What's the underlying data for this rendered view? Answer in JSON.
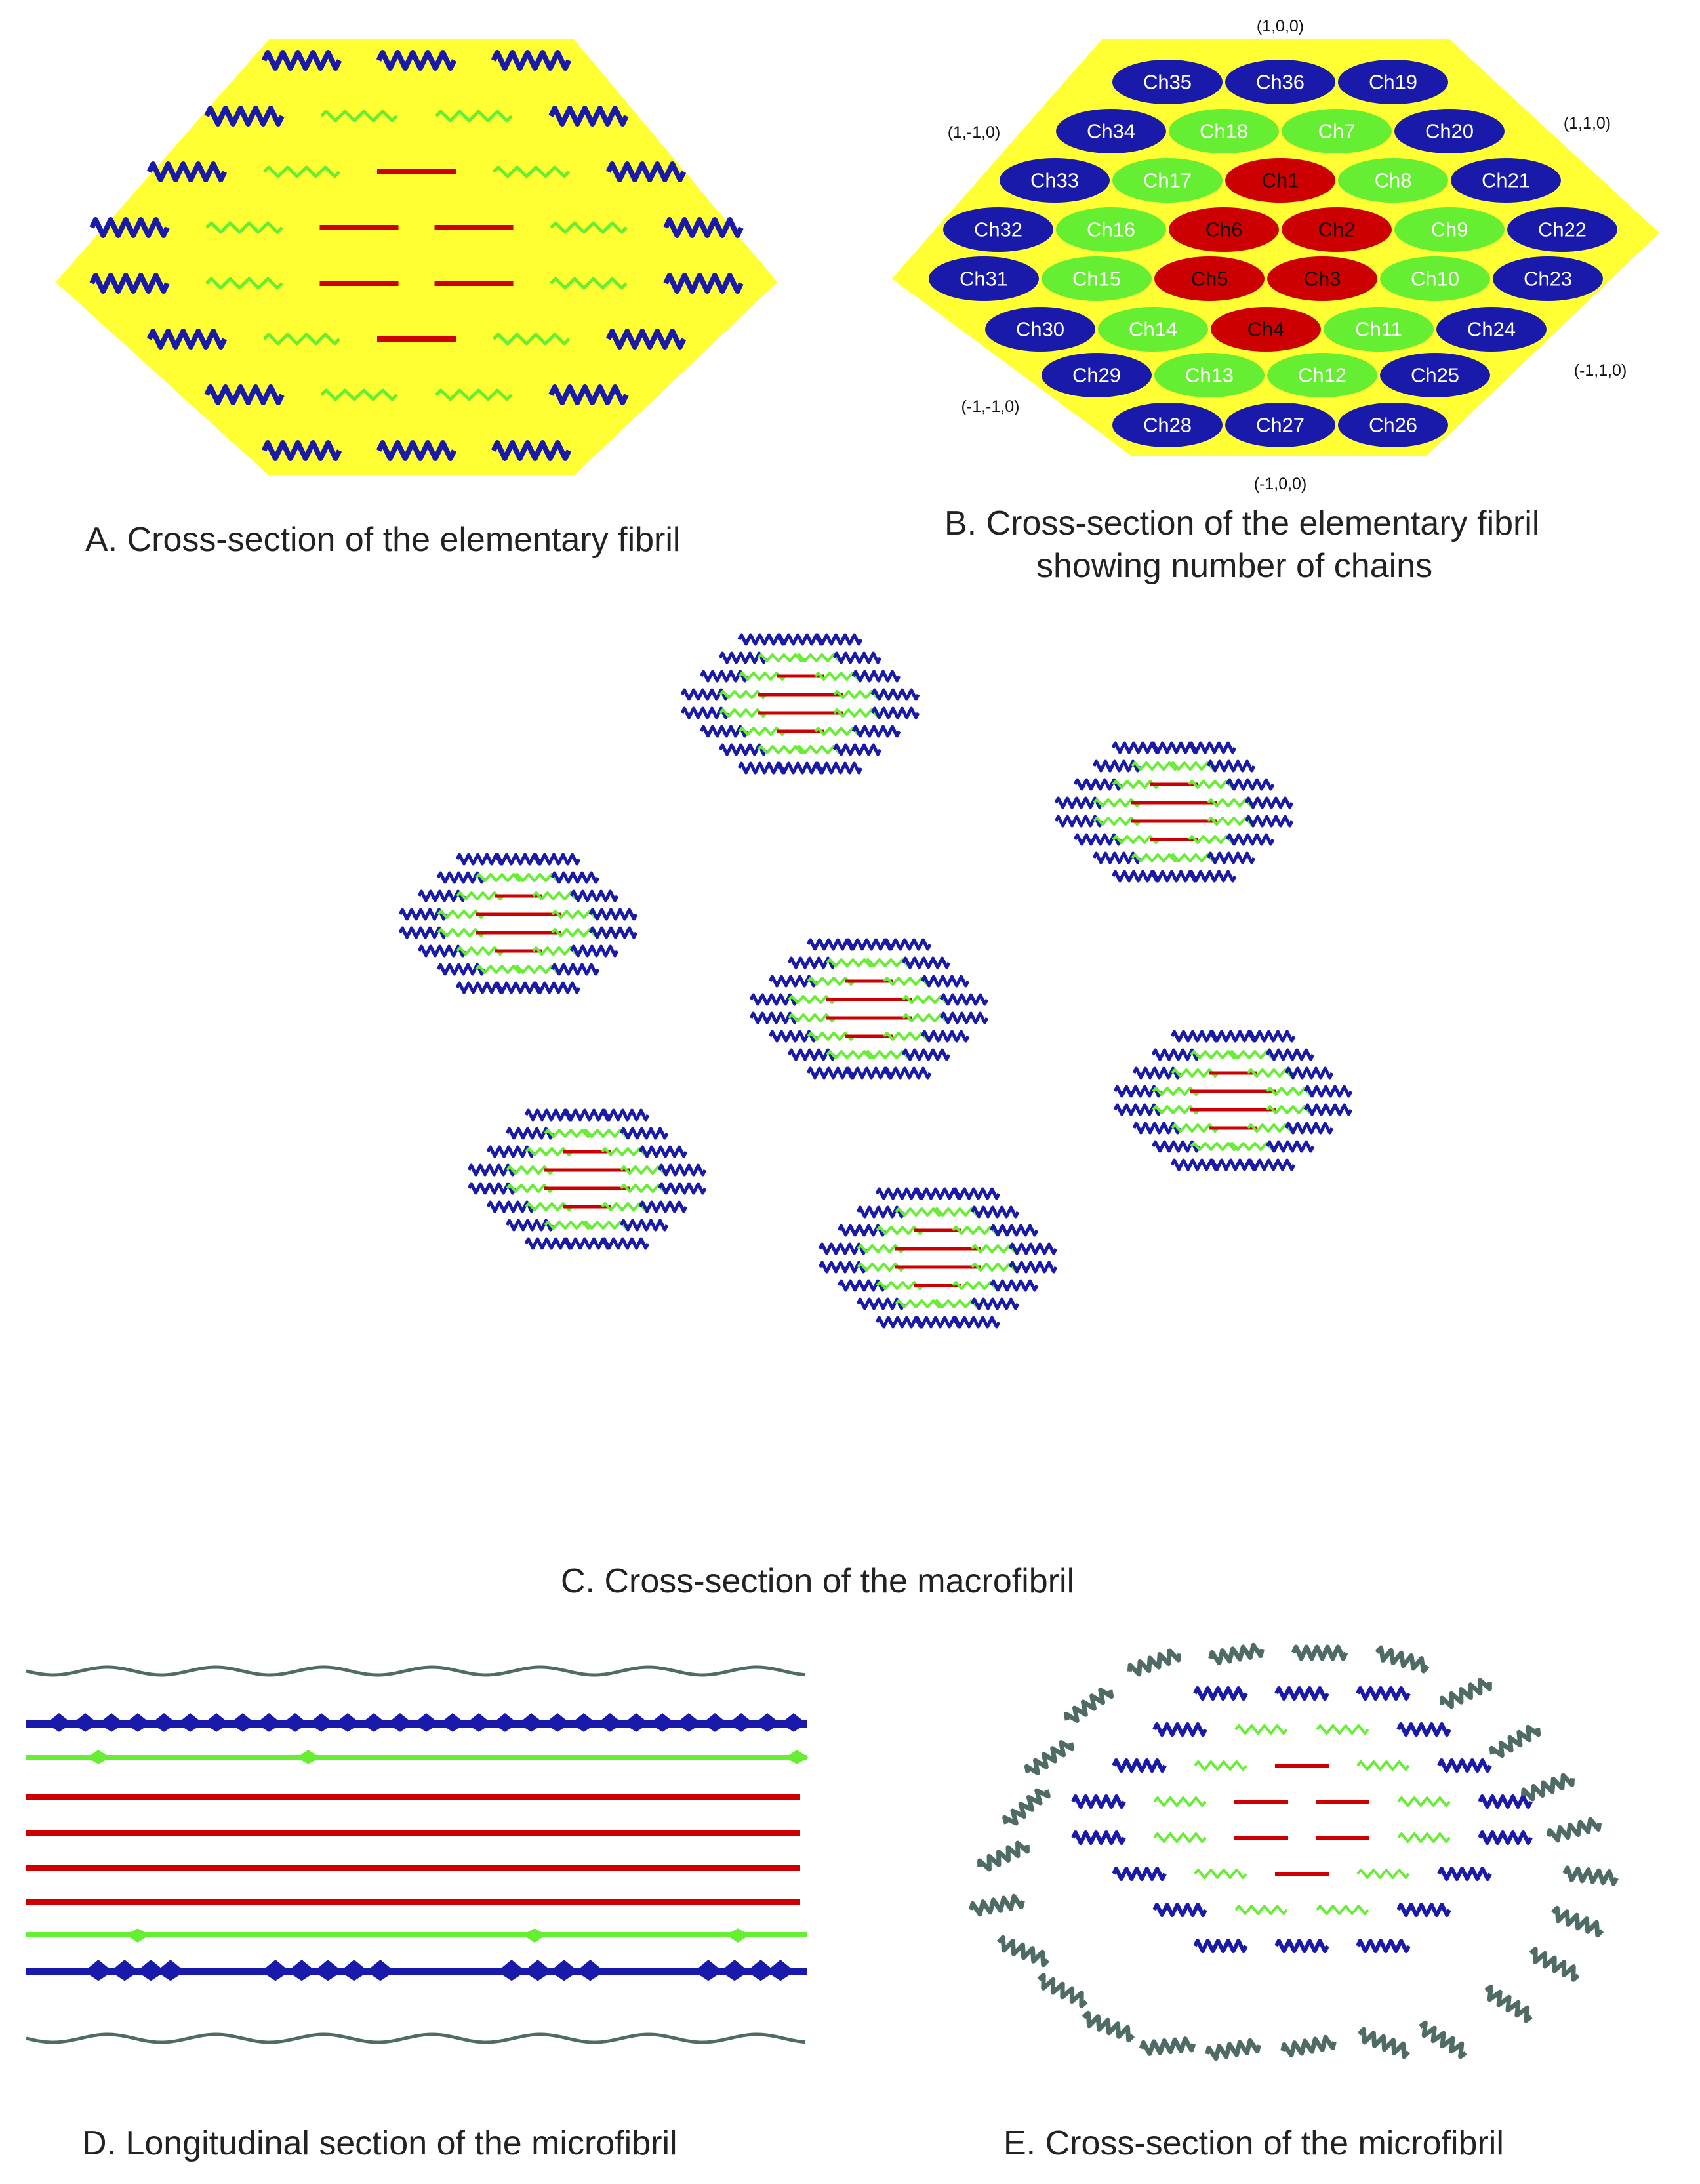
{
  "panels": {
    "A": {
      "caption": "A. Cross-section of the elementary fibril"
    },
    "B": {
      "caption_line1": "B. Cross-section of the elementary fibril",
      "caption_line2": "showing number of chains",
      "miller": {
        "top": "(1,0,0)",
        "upper_left": "(1,-1,0)",
        "upper_right": "(1,1,0)",
        "lower_left": "(-1,-1,0)",
        "lower_right": "(-1,1,0)",
        "bottom": "(-1,0,0)"
      },
      "rows": [
        [
          "Ch35",
          "Ch36",
          "Ch19"
        ],
        [
          "Ch34",
          "Ch18",
          "Ch7",
          "Ch20"
        ],
        [
          "Ch33",
          "Ch17",
          "Ch1",
          "Ch8",
          "Ch21"
        ],
        [
          "Ch32",
          "Ch16",
          "Ch6",
          "Ch2",
          "Ch9",
          "Ch22"
        ],
        [
          "Ch31",
          "Ch15",
          "Ch5",
          "Ch3",
          "Ch10",
          "Ch23"
        ],
        [
          "Ch30",
          "Ch14",
          "Ch4",
          "Ch11",
          "Ch24"
        ],
        [
          "Ch29",
          "Ch13",
          "Ch12",
          "Ch25"
        ],
        [
          "Ch28",
          "Ch27",
          "Ch26"
        ]
      ],
      "chain_types": {
        "interior": [
          "Ch1",
          "Ch2",
          "Ch3",
          "Ch4",
          "Ch5",
          "Ch6"
        ],
        "middle": [
          "Ch7",
          "Ch8",
          "Ch9",
          "Ch10",
          "Ch11",
          "Ch12",
          "Ch13",
          "Ch14",
          "Ch15",
          "Ch16",
          "Ch17",
          "Ch18"
        ],
        "surface": [
          "Ch19",
          "Ch20",
          "Ch21",
          "Ch22",
          "Ch23",
          "Ch24",
          "Ch25",
          "Ch26",
          "Ch27",
          "Ch28",
          "Ch29",
          "Ch30",
          "Ch31",
          "Ch32",
          "Ch33",
          "Ch34",
          "Ch35",
          "Ch36"
        ]
      }
    },
    "C": {
      "caption": "C. Cross-section of the macrofibril"
    },
    "D": {
      "caption": "D. Longitudinal section of the microfibril"
    },
    "E": {
      "caption": "E. Cross-section of the microfibril"
    }
  },
  "colors": {
    "fibril_fill": "#ffff33",
    "interior": "#cc0000",
    "middle": "#66ee33",
    "surface": "#1a1aaa",
    "matrix": "#4f6b66",
    "label_text": "#ffffff"
  }
}
